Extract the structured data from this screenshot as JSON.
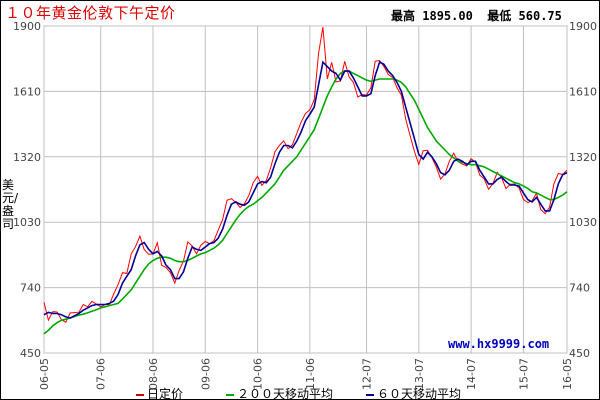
{
  "chart_data": {
    "type": "line",
    "title": "１０年黄金伦敦下午定价",
    "summary": {
      "high_label": "最高",
      "high": "1895.00",
      "low_label": "最低",
      "low": "560.75"
    },
    "ylabel": "美元/盎司",
    "ylim": [
      450,
      1900
    ],
    "yticks": [
      "1900",
      "1610",
      "1320",
      "1030",
      "740",
      "450"
    ],
    "xticks": [
      "06-05",
      "07-06",
      "08-06",
      "09-06",
      "10-06",
      "11-06",
      "12-07",
      "13-07",
      "14-07",
      "15-07",
      "16-05"
    ],
    "x_start": "2006-05",
    "x_end": "2016-05",
    "grid": true,
    "watermark": "www.hx9999.com",
    "colors": {
      "daily": "#ff0000",
      "ma200": "#00aa00",
      "ma60": "#000099",
      "grid": "#c0c0c0"
    },
    "series": [
      {
        "name": "日定价",
        "key": "daily",
        "values": [
          675,
          596,
          633,
          632,
          598,
          586,
          628,
          629,
          631,
          665,
          655,
          679,
          667,
          655,
          665,
          665,
          712,
          754,
          806,
          803,
          889,
          922,
          968,
          909,
          888,
          889,
          939,
          839,
          829,
          806,
          760,
          816,
          858,
          943,
          924,
          890,
          928,
          945,
          934,
          949,
          996,
          1043,
          1127,
          1134,
          1118,
          1095,
          1113,
          1148,
          1205,
          1233,
          1193,
          1215,
          1271,
          1343,
          1370,
          1391,
          1356,
          1373,
          1424,
          1474,
          1512,
          1529,
          1572,
          1780,
          1895,
          1665,
          1739,
          1652,
          1656,
          1743,
          1674,
          1650,
          1585,
          1596,
          1594,
          1626,
          1744,
          1747,
          1721,
          1685,
          1671,
          1627,
          1593,
          1487,
          1414,
          1343,
          1286,
          1347,
          1349,
          1316,
          1275,
          1221,
          1244,
          1300,
          1336,
          1299,
          1287,
          1279,
          1311,
          1296,
          1239,
          1222,
          1176,
          1201,
          1251,
          1227,
          1179,
          1198,
          1199,
          1181,
          1131,
          1117,
          1125,
          1159,
          1086,
          1068,
          1097,
          1200,
          1246,
          1242,
          1260
        ]
      },
      {
        "name": "２００天移动平均",
        "key": "ma200",
        "values": [
          535,
          550,
          570,
          585,
          595,
          600,
          605,
          612,
          618,
          622,
          628,
          635,
          642,
          650,
          655,
          660,
          665,
          670,
          690,
          710,
          730,
          760,
          790,
          820,
          845,
          860,
          870,
          875,
          875,
          870,
          860,
          855,
          855,
          860,
          870,
          880,
          890,
          895,
          905,
          915,
          930,
          950,
          980,
          1010,
          1040,
          1065,
          1085,
          1100,
          1110,
          1125,
          1140,
          1160,
          1180,
          1200,
          1230,
          1260,
          1280,
          1300,
          1320,
          1350,
          1380,
          1410,
          1440,
          1490,
          1540,
          1590,
          1630,
          1665,
          1690,
          1700,
          1700,
          1690,
          1680,
          1670,
          1660,
          1655,
          1660,
          1665,
          1665,
          1665,
          1665,
          1660,
          1650,
          1630,
          1600,
          1570,
          1530,
          1490,
          1450,
          1420,
          1390,
          1370,
          1350,
          1330,
          1315,
          1300,
          1295,
          1290,
          1285,
          1285,
          1280,
          1275,
          1265,
          1255,
          1245,
          1235,
          1225,
          1215,
          1205,
          1200,
          1190,
          1180,
          1165,
          1160,
          1150,
          1140,
          1130,
          1130,
          1140,
          1150,
          1165
        ]
      },
      {
        "name": "６０天移动平均",
        "key": "ma60",
        "values": [
          620,
          630,
          625,
          625,
          620,
          610,
          605,
          615,
          625,
          640,
          650,
          660,
          665,
          665,
          665,
          670,
          680,
          710,
          760,
          790,
          820,
          880,
          930,
          940,
          910,
          890,
          900,
          880,
          840,
          820,
          780,
          780,
          810,
          870,
          920,
          910,
          905,
          920,
          935,
          940,
          960,
          1000,
          1060,
          1110,
          1120,
          1110,
          1105,
          1120,
          1160,
          1200,
          1210,
          1205,
          1230,
          1290,
          1340,
          1370,
          1370,
          1360,
          1390,
          1430,
          1480,
          1510,
          1540,
          1640,
          1740,
          1720,
          1700,
          1690,
          1660,
          1700,
          1700,
          1670,
          1630,
          1590,
          1590,
          1600,
          1680,
          1740,
          1730,
          1700,
          1680,
          1650,
          1610,
          1540,
          1470,
          1400,
          1330,
          1310,
          1340,
          1320,
          1290,
          1250,
          1240,
          1260,
          1300,
          1310,
          1300,
          1285,
          1300,
          1300,
          1260,
          1230,
          1200,
          1200,
          1220,
          1230,
          1210,
          1195,
          1195,
          1190,
          1160,
          1130,
          1120,
          1140,
          1110,
          1080,
          1080,
          1130,
          1200,
          1240,
          1250
        ]
      }
    ]
  }
}
